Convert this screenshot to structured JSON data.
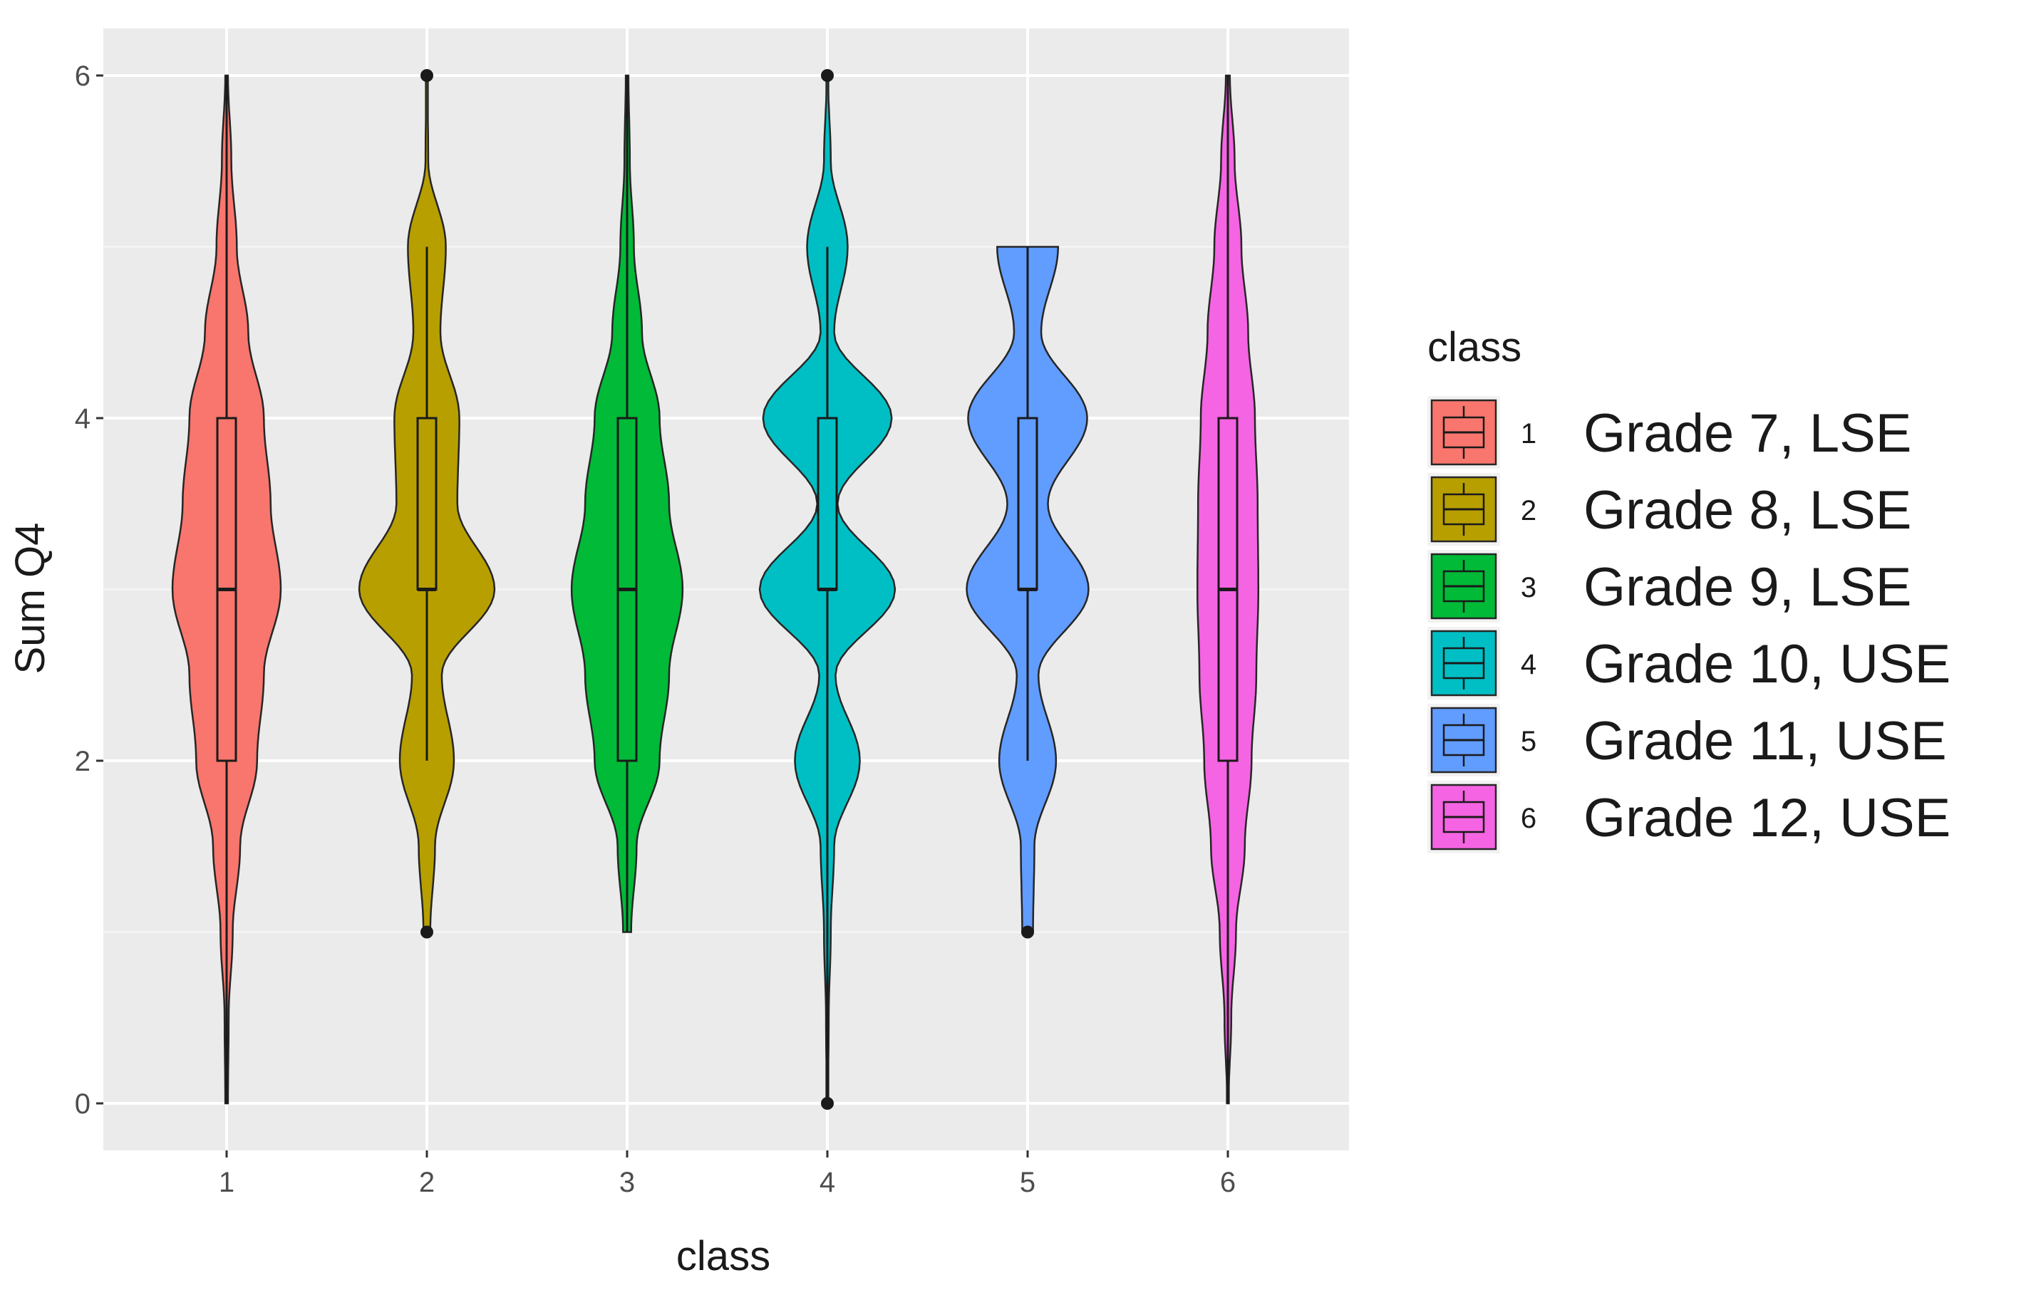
{
  "chart_data": {
    "type": "violin",
    "xlabel": "class",
    "ylabel": "Sum Q4",
    "x_ticks": [
      "1",
      "2",
      "3",
      "4",
      "5",
      "6"
    ],
    "y_ticks": [
      "0",
      "2",
      "4",
      "6"
    ],
    "ylim": [
      -0.3,
      6.25
    ],
    "grid": true,
    "legend": {
      "title": "class",
      "placement": "right",
      "keys": [
        "1",
        "2",
        "3",
        "4",
        "5",
        "6"
      ],
      "labels": [
        "Grade 7, LSE",
        "Grade 8, LSE",
        "Grade 9, LSE",
        "Grade 10, USE",
        "Grade 11, USE",
        "Grade 12, USE"
      ]
    },
    "series": [
      {
        "name": "Grade 7, LSE",
        "key": "1",
        "color": "#F8766D",
        "min": 0,
        "q1": 2,
        "median": 3,
        "q3": 4,
        "max": 6,
        "outliers": [],
        "density": [
          [
            0,
            0.02
          ],
          [
            0.5,
            0.03
          ],
          [
            1,
            0.09
          ],
          [
            1.5,
            0.2
          ],
          [
            2,
            0.45
          ],
          [
            2.5,
            0.55
          ],
          [
            3,
            0.8
          ],
          [
            3.5,
            0.65
          ],
          [
            4,
            0.55
          ],
          [
            4.5,
            0.32
          ],
          [
            5,
            0.15
          ],
          [
            5.5,
            0.07
          ],
          [
            6,
            0.02
          ]
        ]
      },
      {
        "name": "Grade 8, LSE",
        "key": "2",
        "color": "#B79F00",
        "min": 2,
        "q1": 3,
        "median": 3,
        "q3": 4,
        "max": 5,
        "outliers": [
          1,
          6
        ],
        "density": [
          [
            1,
            0.05
          ],
          [
            1.5,
            0.12
          ],
          [
            2,
            0.4
          ],
          [
            2.5,
            0.22
          ],
          [
            3,
            1.0
          ],
          [
            3.5,
            0.45
          ],
          [
            4,
            0.48
          ],
          [
            4.5,
            0.2
          ],
          [
            5,
            0.28
          ],
          [
            5.5,
            0.02
          ],
          [
            6,
            0.01
          ]
        ]
      },
      {
        "name": "Grade 9, LSE",
        "key": "3",
        "color": "#00BA38",
        "min": 1,
        "q1": 2,
        "median": 3,
        "q3": 4,
        "max": 6,
        "outliers": [],
        "density": [
          [
            1,
            0.06
          ],
          [
            1.5,
            0.14
          ],
          [
            2,
            0.48
          ],
          [
            2.5,
            0.62
          ],
          [
            3,
            0.82
          ],
          [
            3.5,
            0.62
          ],
          [
            4,
            0.48
          ],
          [
            4.5,
            0.22
          ],
          [
            5,
            0.1
          ],
          [
            5.5,
            0.04
          ],
          [
            6,
            0.02
          ]
        ]
      },
      {
        "name": "Grade 10, USE",
        "key": "4",
        "color": "#00BFC4",
        "min": 0,
        "q1": 3,
        "median": 3,
        "q3": 4,
        "max": 5,
        "outliers": [
          0,
          6
        ],
        "density": [
          [
            0,
            0.01
          ],
          [
            0.5,
            0.02
          ],
          [
            1,
            0.05
          ],
          [
            1.5,
            0.1
          ],
          [
            2,
            0.48
          ],
          [
            2.5,
            0.12
          ],
          [
            3,
            1.0
          ],
          [
            3.5,
            0.15
          ],
          [
            4,
            0.95
          ],
          [
            4.5,
            0.1
          ],
          [
            5,
            0.3
          ],
          [
            5.5,
            0.05
          ],
          [
            6,
            0.01
          ]
        ]
      },
      {
        "name": "Grade 11, USE",
        "key": "5",
        "color": "#619CFF",
        "min": 2,
        "q1": 3,
        "median": 3,
        "q3": 4,
        "max": 5,
        "outliers": [
          1
        ],
        "density": [
          [
            1,
            0.08
          ],
          [
            1.5,
            0.1
          ],
          [
            2,
            0.42
          ],
          [
            2.5,
            0.16
          ],
          [
            3,
            0.9
          ],
          [
            3.5,
            0.3
          ],
          [
            4,
            0.88
          ],
          [
            4.5,
            0.2
          ],
          [
            5,
            0.45
          ]
        ]
      },
      {
        "name": "Grade 12, USE",
        "key": "6",
        "color": "#F564E3",
        "min": 0,
        "q1": 2,
        "median": 3,
        "q3": 4,
        "max": 6,
        "outliers": [],
        "density": [
          [
            0,
            0.01
          ],
          [
            0.5,
            0.05
          ],
          [
            1,
            0.12
          ],
          [
            1.5,
            0.25
          ],
          [
            2,
            0.35
          ],
          [
            2.5,
            0.42
          ],
          [
            3,
            0.45
          ],
          [
            3.5,
            0.44
          ],
          [
            4,
            0.4
          ],
          [
            4.5,
            0.3
          ],
          [
            5,
            0.2
          ],
          [
            5.5,
            0.1
          ],
          [
            6,
            0.03
          ]
        ]
      }
    ]
  }
}
